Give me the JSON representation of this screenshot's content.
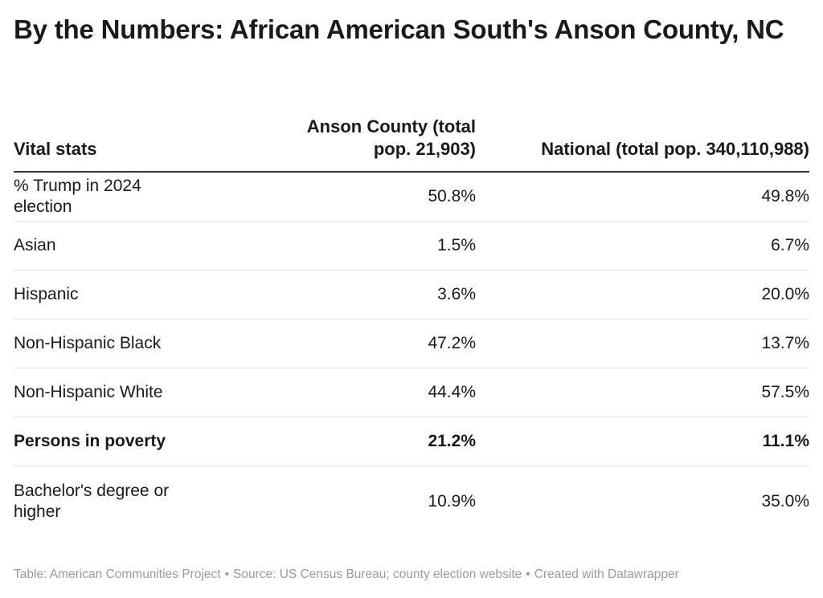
{
  "title": "By the Numbers: African American South's Anson County, NC",
  "chart_data": {
    "type": "table",
    "columns": [
      "Vital stats",
      "Anson County (total pop. 21,903)",
      "National (total pop. 340,110,988)"
    ],
    "rows": [
      {
        "label": "% Trump in 2024 election",
        "values": [
          "50.8%",
          "49.8%"
        ],
        "bold": false
      },
      {
        "label": "Asian",
        "values": [
          "1.5%",
          "6.7%"
        ],
        "bold": false
      },
      {
        "label": "Hispanic",
        "values": [
          "3.6%",
          "20.0%"
        ],
        "bold": false
      },
      {
        "label": "Non-Hispanic Black",
        "values": [
          "47.2%",
          "13.7%"
        ],
        "bold": false
      },
      {
        "label": "Non-Hispanic White",
        "values": [
          "44.4%",
          "57.5%"
        ],
        "bold": false
      },
      {
        "label": "Persons in poverty",
        "values": [
          "21.2%",
          "11.1%"
        ],
        "bold": true
      },
      {
        "label": "Bachelor's degree or higher",
        "values": [
          "10.9%",
          "35.0%"
        ],
        "bold": false
      }
    ]
  },
  "footer": {
    "table": "Table: American Communities Project",
    "source": "Source: US Census Bureau; county election website",
    "created": "Created with Datawrapper",
    "separator": "•"
  }
}
